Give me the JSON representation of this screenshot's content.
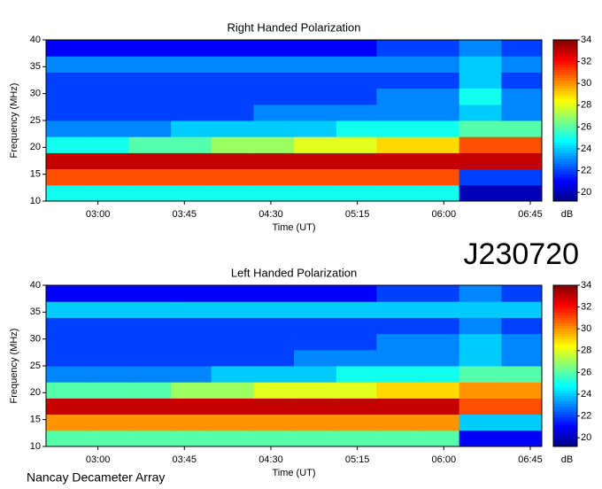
{
  "title": "J230720",
  "footer": "Nancay Decameter Array",
  "chart_data": [
    {
      "type": "heatmap",
      "title": "Right Handed Polarization",
      "xlabel": "Time (UT)",
      "ylabel": "Frequency (MHz)",
      "colorbar_label": "dB",
      "colormap": "jet",
      "x": [
        153,
        175,
        196,
        218,
        239,
        261,
        282,
        304,
        325,
        347,
        368,
        390,
        411
      ],
      "y": [
        10,
        13,
        16,
        19,
        22,
        25,
        28,
        31,
        34,
        37,
        40
      ],
      "z": [
        [
          25,
          25,
          25,
          25,
          25,
          25,
          25,
          25,
          25,
          25,
          20,
          20
        ],
        [
          31,
          31,
          31,
          31,
          31,
          31,
          31,
          31,
          31,
          31,
          22,
          22
        ],
        [
          33,
          33,
          33,
          33,
          33,
          33,
          33,
          33,
          33,
          33,
          33,
          33
        ],
        [
          25,
          25,
          26,
          26,
          27,
          27,
          28,
          28,
          29,
          29,
          31,
          31
        ],
        [
          23,
          23,
          23,
          24,
          24,
          24,
          24,
          25,
          25,
          25,
          26,
          26
        ],
        [
          22,
          22,
          22,
          22,
          22,
          23,
          23,
          23,
          23,
          23,
          24,
          23
        ],
        [
          22,
          22,
          22,
          22,
          22,
          22,
          22,
          22,
          23,
          23,
          25,
          23
        ],
        [
          22,
          22,
          22,
          22,
          22,
          22,
          22,
          22,
          22,
          22,
          24,
          22
        ],
        [
          23,
          23,
          23,
          23,
          23,
          23,
          23,
          23,
          23,
          23,
          24,
          23
        ],
        [
          21,
          21,
          21,
          21,
          21,
          21,
          21,
          21,
          22,
          22,
          23,
          22
        ]
      ],
      "xlim": [
        153,
        411
      ],
      "ylim": [
        10,
        40
      ],
      "zlim": [
        19.2,
        34
      ],
      "xticks": [
        {
          "value": 180,
          "label": "03:00"
        },
        {
          "value": 225,
          "label": "03:45"
        },
        {
          "value": 270,
          "label": "04:30"
        },
        {
          "value": 315,
          "label": "05:15"
        },
        {
          "value": 360,
          "label": "06:00"
        },
        {
          "value": 405,
          "label": "06:45"
        }
      ],
      "yticks": [
        10,
        15,
        20,
        25,
        30,
        35,
        40
      ],
      "zticks": [
        20,
        22,
        24,
        26,
        28,
        30,
        32,
        34
      ]
    },
    {
      "type": "heatmap",
      "title": "Left Handed Polarization",
      "xlabel": "Time (UT)",
      "ylabel": "Frequency (MHz)",
      "colorbar_label": "dB",
      "colormap": "jet",
      "x": [
        153,
        175,
        196,
        218,
        239,
        261,
        282,
        304,
        325,
        347,
        368,
        390,
        411
      ],
      "y": [
        10,
        13,
        16,
        19,
        22,
        25,
        28,
        31,
        34,
        37,
        40
      ],
      "z": [
        [
          26,
          26,
          26,
          26,
          26,
          26,
          26,
          26,
          26,
          26,
          21,
          21
        ],
        [
          30,
          30,
          30,
          30,
          30,
          30,
          30,
          30,
          30,
          30,
          24,
          24
        ],
        [
          33,
          33,
          33,
          33,
          33,
          33,
          33,
          33,
          33,
          33,
          31,
          31
        ],
        [
          26,
          26,
          26,
          27,
          27,
          28,
          28,
          28,
          29,
          29,
          30,
          30
        ],
        [
          23,
          23,
          23,
          23,
          24,
          24,
          24,
          25,
          25,
          25,
          26,
          26
        ],
        [
          22,
          22,
          22,
          22,
          22,
          22,
          23,
          23,
          23,
          23,
          24,
          23
        ],
        [
          22,
          22,
          22,
          22,
          22,
          22,
          22,
          22,
          23,
          23,
          24,
          23
        ],
        [
          22,
          22,
          22,
          22,
          22,
          22,
          22,
          22,
          22,
          22,
          23,
          22
        ],
        [
          24,
          24,
          24,
          24,
          24,
          24,
          24,
          24,
          24,
          24,
          24,
          24
        ],
        [
          21,
          21,
          21,
          21,
          21,
          21,
          21,
          21,
          22,
          22,
          23,
          22
        ]
      ],
      "xlim": [
        153,
        411
      ],
      "ylim": [
        10,
        40
      ],
      "zlim": [
        19.2,
        34
      ],
      "xticks": [
        {
          "value": 180,
          "label": "03:00"
        },
        {
          "value": 225,
          "label": "03:45"
        },
        {
          "value": 270,
          "label": "04:30"
        },
        {
          "value": 315,
          "label": "05:15"
        },
        {
          "value": 360,
          "label": "06:00"
        },
        {
          "value": 405,
          "label": "06:45"
        }
      ],
      "yticks": [
        10,
        15,
        20,
        25,
        30,
        35,
        40
      ],
      "zticks": [
        20,
        22,
        24,
        26,
        28,
        30,
        32,
        34
      ]
    }
  ]
}
